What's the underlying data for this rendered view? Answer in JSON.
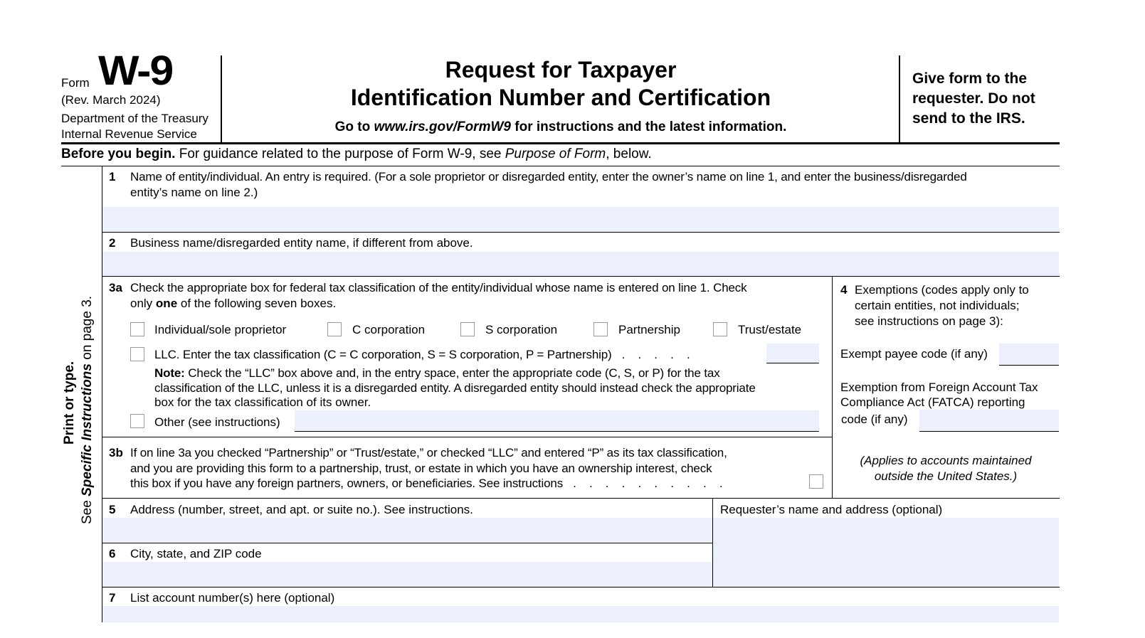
{
  "header": {
    "form_word": "Form",
    "form_number": "W-9",
    "revision": "(Rev. March 2024)",
    "department": "Department of the Treasury",
    "agency": "Internal Revenue Service",
    "title_line1": "Request for Taxpayer",
    "title_line2": "Identification Number and Certification",
    "goto_prefix": "Go to ",
    "goto_url": "www.irs.gov/FormW9",
    "goto_suffix": " for instructions and the latest information.",
    "give_form_line1": "Give form to the",
    "give_form_line2": "requester. Do not",
    "give_form_line3": "send to the IRS."
  },
  "before_begin": {
    "bold": "Before you begin.",
    "text": " For guidance related to the purpose of Form W-9, see ",
    "italic": "Purpose of Form",
    "end": ", below."
  },
  "side": {
    "print": "Print or type.",
    "see": "See ",
    "specific": "Specific Instructions",
    "on_page": " on page 3."
  },
  "line1": {
    "num": "1",
    "text1": "Name of entity/individual. An entry is required. (For a sole proprietor or disregarded entity, enter the owner’s name on line 1, and enter the business/disregarded",
    "text2": "entity’s name on line 2.)",
    "value": ""
  },
  "line2": {
    "num": "2",
    "text": "Business name/disregarded entity name, if different from above.",
    "value": ""
  },
  "line3a": {
    "num": "3a",
    "text1": "Check the appropriate box for federal tax classification of the entity/individual whose name is entered on line 1. Check",
    "text2_pre": "only ",
    "text2_bold": "one",
    "text2_post": " of the following seven boxes.",
    "options": [
      "Individual/sole proprietor",
      "C corporation",
      "S corporation",
      "Partnership",
      "Trust/estate"
    ],
    "llc": "LLC. Enter the tax classification (C = C corporation, S = S corporation, P = Partnership)",
    "llc_dots": ".    .    .    .    .",
    "note_bold": "Note:",
    "note1": " Check the “LLC” box above and, in the entry space, enter the appropriate code (C, S, or P) for the tax",
    "note2": "classification of the LLC, unless it is a disregarded entity. A disregarded entity should instead check the appropriate",
    "note3": "box for the tax classification of its owner.",
    "other": "Other (see instructions)"
  },
  "line3b": {
    "num": "3b",
    "text1": "If on line 3a you checked “Partnership” or “Trust/estate,” or checked “LLC” and entered “P” as its tax classification,",
    "text2": "and you are providing this form to a partnership, trust, or estate in which you have an ownership interest, check",
    "text3": "this box if you have any foreign partners, owners, or beneficiaries. See instructions",
    "dots": ".    .    .    .    .    .    .    .    .    ."
  },
  "line4": {
    "num": "4",
    "text1": "Exemptions (codes apply only to",
    "text2": "certain entities, not individuals;",
    "text3": "see instructions on page 3):",
    "exempt_payee": "Exempt payee code (if any)",
    "fatca1": "Exemption from Foreign Account Tax",
    "fatca2": "Compliance Act (FATCA) reporting",
    "fatca3": "code (if any)",
    "applies1": "(Applies to accounts maintained",
    "applies2": "outside the United States.)"
  },
  "line5": {
    "num": "5",
    "text": "Address (number, street, and apt. or suite no.). See instructions."
  },
  "requester": {
    "text": "Requester’s name and address (optional)"
  },
  "line6": {
    "num": "6",
    "text": "City, state, and ZIP code"
  },
  "line7": {
    "num": "7",
    "text": "List account number(s) here (optional)"
  }
}
